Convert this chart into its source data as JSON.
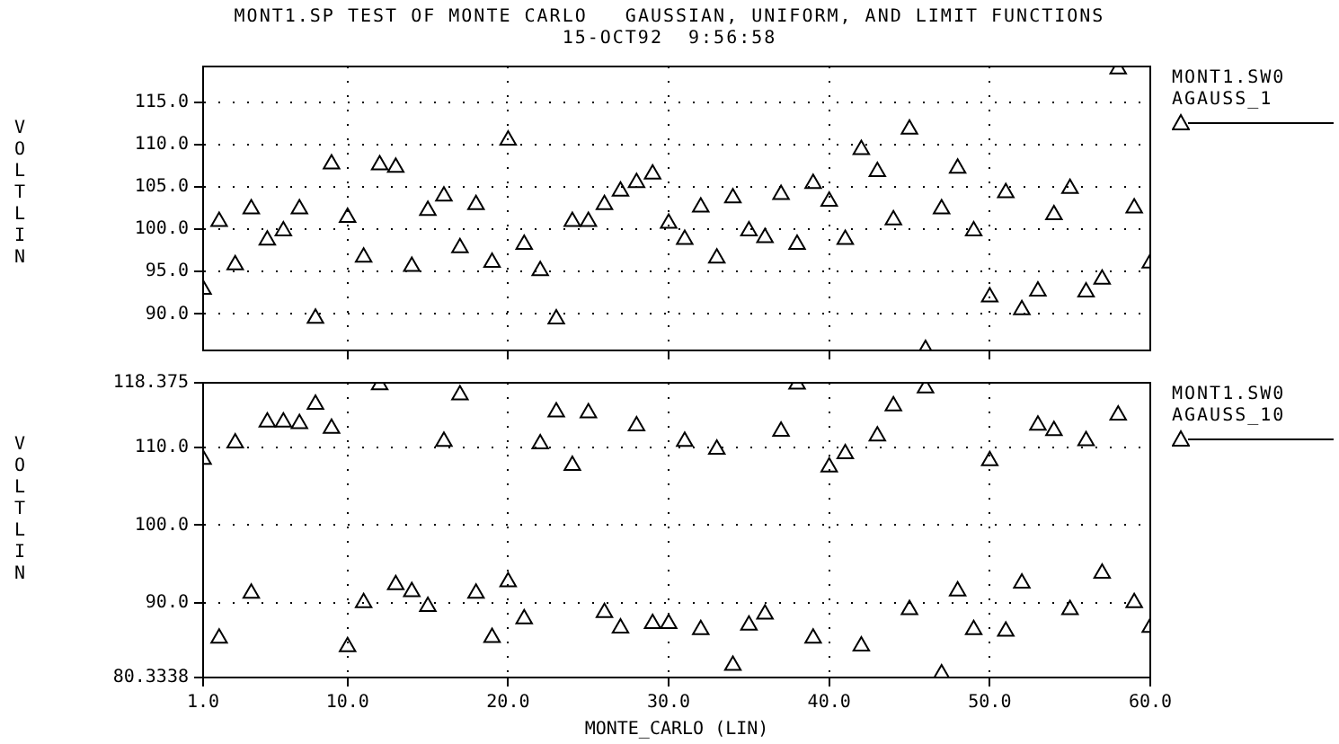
{
  "chart_data": [
    {
      "type": "scatter",
      "title": "MONT1.SP TEST OF MONTE CARLO   GAUSSIAN, UNIFORM, AND LIMIT FUNCTIONS",
      "subtitle": "15-OCT92  9:56:58",
      "ylabel": "VOLT LIN",
      "x": [
        1,
        2,
        3,
        4,
        5,
        6,
        7,
        8,
        9,
        10,
        11,
        12,
        13,
        14,
        15,
        16,
        17,
        18,
        19,
        20,
        21,
        22,
        23,
        24,
        25,
        26,
        27,
        28,
        29,
        30,
        31,
        32,
        33,
        34,
        35,
        36,
        37,
        38,
        39,
        40,
        41,
        42,
        43,
        44,
        45,
        46,
        47,
        48,
        49,
        50,
        51,
        52,
        53,
        54,
        55,
        56,
        57,
        58,
        59,
        60
      ],
      "series": [
        {
          "name": "MONT1.SW0 AGAUSS_1",
          "color": "#000000",
          "values": [
            92.9,
            100.9,
            95.8,
            102.4,
            98.7,
            99.8,
            102.4,
            89.5,
            107.7,
            101.4,
            96.7,
            107.6,
            107.3,
            95.6,
            102.2,
            103.9,
            97.8,
            102.9,
            96.1,
            110.5,
            98.2,
            95.1,
            89.4,
            100.9,
            100.9,
            102.9,
            104.5,
            105.5,
            106.5,
            100.7,
            98.8,
            102.6,
            96.6,
            103.7,
            99.8,
            99.0,
            104.1,
            98.2,
            105.4,
            103.3,
            98.8,
            109.4,
            106.8,
            101.1,
            111.8,
            85.8,
            102.4,
            107.2,
            99.8,
            92.0,
            104.3,
            90.5,
            92.7,
            101.7,
            104.8,
            92.6,
            94.1,
            118.9,
            102.5,
            96.0
          ]
        }
      ],
      "xlim": [
        1,
        60
      ],
      "xticks": [
        {
          "value": 10,
          "label": null
        },
        {
          "value": 20,
          "label": null
        },
        {
          "value": 30,
          "label": null
        },
        {
          "value": 40,
          "label": null
        },
        {
          "value": 50,
          "label": null
        }
      ],
      "ylim": [
        85.7,
        119.2
      ],
      "yticks": [
        {
          "value": 90,
          "label": "90.0"
        },
        {
          "value": 95,
          "label": "95.0"
        },
        {
          "value": 100,
          "label": "100.0"
        },
        {
          "value": 105,
          "label": "105.0"
        },
        {
          "value": 110,
          "label": "110.0"
        },
        {
          "value": 115,
          "label": "115.0"
        }
      ],
      "tick_labels": "y",
      "grid": true,
      "legend": "right",
      "marker": "triangle"
    },
    {
      "type": "scatter",
      "ylabel": "VOLT LIN",
      "xlabel": "MONTE_CARLO (LIN)",
      "x": [
        1,
        2,
        3,
        4,
        5,
        6,
        7,
        8,
        9,
        10,
        11,
        12,
        13,
        14,
        15,
        16,
        17,
        18,
        19,
        20,
        21,
        22,
        23,
        24,
        25,
        26,
        27,
        28,
        29,
        30,
        31,
        32,
        33,
        34,
        35,
        36,
        37,
        38,
        39,
        40,
        41,
        42,
        43,
        44,
        45,
        46,
        47,
        48,
        49,
        50,
        51,
        52,
        53,
        54,
        55,
        56,
        57,
        58,
        59,
        60
      ],
      "series": [
        {
          "name": "MONT1.SW0 AGAUSS_10",
          "color": "#000000",
          "values": [
            108.5,
            85.4,
            110.6,
            91.2,
            113.3,
            113.3,
            113.1,
            115.6,
            112.5,
            84.3,
            90.0,
            118.1,
            92.3,
            91.4,
            89.5,
            110.8,
            116.8,
            91.2,
            85.5,
            92.7,
            87.9,
            110.5,
            114.6,
            107.7,
            114.5,
            88.7,
            86.7,
            112.8,
            87.3,
            87.3,
            110.8,
            86.5,
            109.8,
            81.9,
            87.1,
            88.5,
            112.1,
            118.2,
            85.4,
            107.5,
            109.2,
            84.4,
            111.5,
            115.4,
            89.1,
            117.7,
            80.8,
            91.5,
            86.5,
            108.3,
            86.3,
            92.5,
            112.9,
            112.2,
            89.1,
            110.9,
            93.8,
            114.2,
            90.0,
            86.8
          ]
        }
      ],
      "xlim": [
        1,
        60
      ],
      "xticks": [
        {
          "value": 1,
          "label": "1.0"
        },
        {
          "value": 10,
          "label": "10.0"
        },
        {
          "value": 20,
          "label": "20.0"
        },
        {
          "value": 30,
          "label": "30.0"
        },
        {
          "value": 40,
          "label": "40.0"
        },
        {
          "value": 50,
          "label": "50.0"
        },
        {
          "value": 60,
          "label": "60.0"
        }
      ],
      "ylim": [
        80.3338,
        118.375
      ],
      "yticks": [
        80.3338,
        {
          "value": 90,
          "label": "90.0"
        },
        {
          "value": 100,
          "label": "100.0"
        },
        {
          "value": 110,
          "label": "110.0"
        },
        118.375
      ],
      "grid": true,
      "legend": "right",
      "marker": "triangle"
    }
  ]
}
